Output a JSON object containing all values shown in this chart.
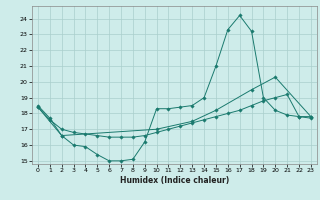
{
  "xlabel": "Humidex (Indice chaleur)",
  "xlim": [
    -0.5,
    23.5
  ],
  "ylim": [
    14.8,
    24.8
  ],
  "yticks": [
    15,
    16,
    17,
    18,
    19,
    20,
    21,
    22,
    23,
    24
  ],
  "xticks": [
    0,
    1,
    2,
    3,
    4,
    5,
    6,
    7,
    8,
    9,
    10,
    11,
    12,
    13,
    14,
    15,
    16,
    17,
    18,
    19,
    20,
    21,
    22,
    23
  ],
  "bg_color": "#ceecea",
  "line_color": "#1a7a6e",
  "grid_color": "#aacfcc",
  "series": [
    {
      "x": [
        0,
        1,
        2,
        3,
        4,
        5,
        6,
        7,
        8,
        9,
        10,
        11,
        12,
        13,
        14,
        15,
        16,
        17,
        18,
        19,
        20,
        21,
        22,
        23
      ],
      "y": [
        18.5,
        17.7,
        16.6,
        16.0,
        15.9,
        15.4,
        15.0,
        15.0,
        15.1,
        16.2,
        18.3,
        18.3,
        18.4,
        18.5,
        19.0,
        21.0,
        23.3,
        24.2,
        23.2,
        19.0,
        18.2,
        17.9,
        17.8,
        17.8
      ]
    },
    {
      "x": [
        0,
        1,
        2,
        3,
        4,
        5,
        6,
        7,
        8,
        9,
        10,
        11,
        12,
        13,
        14,
        15,
        16,
        17,
        18,
        19,
        20,
        21,
        22,
        23
      ],
      "y": [
        18.4,
        17.6,
        17.0,
        16.8,
        16.7,
        16.6,
        16.5,
        16.5,
        16.5,
        16.6,
        16.8,
        17.0,
        17.2,
        17.4,
        17.6,
        17.8,
        18.0,
        18.2,
        18.5,
        18.8,
        19.0,
        19.2,
        17.8,
        17.7
      ]
    },
    {
      "x": [
        0,
        2,
        10,
        13,
        15,
        18,
        20,
        23
      ],
      "y": [
        18.4,
        16.6,
        17.0,
        17.5,
        18.2,
        19.5,
        20.3,
        17.8
      ]
    }
  ]
}
